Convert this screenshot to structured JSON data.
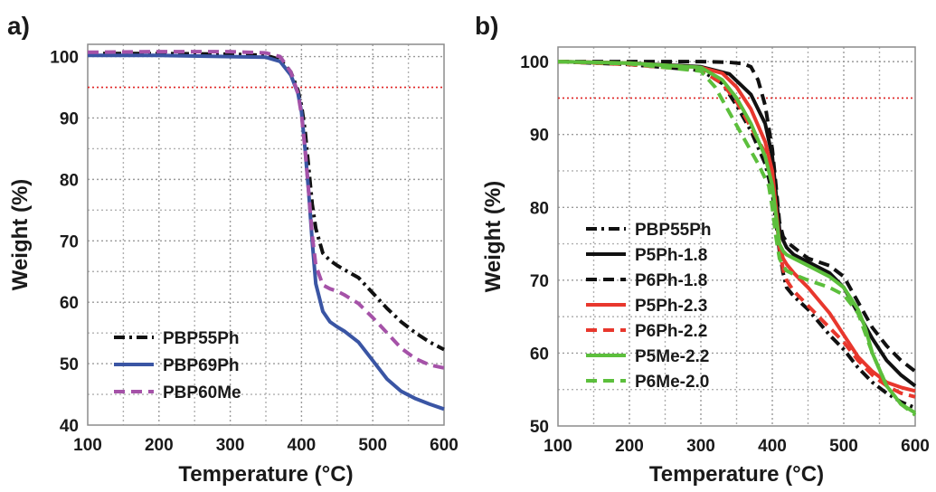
{
  "chart_data": [
    {
      "panel_label": "a)",
      "type": "line",
      "xlabel": "Temperature (°C)",
      "ylabel": "Weight (%)",
      "xlim": [
        100,
        600
      ],
      "ylim": [
        40,
        102
      ],
      "xticks": [
        "100",
        "200",
        "300",
        "400",
        "500",
        "600"
      ],
      "yticks": [
        "40",
        "50",
        "60",
        "70",
        "80",
        "90",
        "100"
      ],
      "grid": "dotted",
      "legend_position": "bottom-left",
      "reference_line": {
        "y": 95,
        "color": "#e32626",
        "style": "dotted"
      },
      "series": [
        {
          "name": "PBP55Ph",
          "color": "#111111",
          "dash": "dash-dot",
          "x": [
            100,
            200,
            300,
            350,
            370,
            385,
            395,
            400,
            405,
            410,
            415,
            420,
            430,
            440,
            450,
            460,
            480,
            500,
            520,
            540,
            560,
            580,
            600
          ],
          "y": [
            100.5,
            100.5,
            100.4,
            100.2,
            99.5,
            97.5,
            94.5,
            92,
            88,
            82,
            76,
            72,
            68,
            66.8,
            66,
            65.3,
            64,
            61.5,
            59,
            56.8,
            55,
            53.5,
            52.3
          ]
        },
        {
          "name": "PBP69Ph",
          "color": "#3a55a4",
          "dash": "solid",
          "x": [
            100,
            200,
            300,
            350,
            370,
            385,
            395,
            400,
            405,
            410,
            415,
            420,
            430,
            440,
            450,
            460,
            480,
            500,
            520,
            540,
            560,
            580,
            600
          ],
          "y": [
            100.2,
            100.2,
            100.0,
            99.9,
            99.2,
            97,
            94,
            91,
            85,
            78,
            70,
            63,
            58.5,
            56.8,
            56.0,
            55.3,
            53.5,
            50.5,
            47.5,
            45.5,
            44.3,
            43.4,
            42.6
          ]
        },
        {
          "name": "PBP60Me",
          "color": "#a552a8",
          "dash": "dashed",
          "x": [
            100,
            200,
            300,
            350,
            370,
            385,
            395,
            400,
            405,
            410,
            415,
            420,
            430,
            440,
            450,
            460,
            480,
            500,
            520,
            540,
            560,
            580,
            600
          ],
          "y": [
            100.7,
            100.8,
            100.8,
            100.6,
            100,
            97.5,
            94,
            90.5,
            85,
            78,
            71,
            66,
            62.8,
            62.2,
            61.8,
            61.2,
            59.8,
            57.5,
            55,
            52.5,
            50.8,
            49.8,
            49.3
          ]
        }
      ]
    },
    {
      "panel_label": "b)",
      "type": "line",
      "xlabel": "Temperature (°C)",
      "ylabel": "Weight (%)",
      "xlim": [
        100,
        600
      ],
      "ylim": [
        50,
        102
      ],
      "xticks": [
        "100",
        "200",
        "300",
        "400",
        "500",
        "600"
      ],
      "yticks": [
        "50",
        "60",
        "70",
        "80",
        "90",
        "100"
      ],
      "grid": "dotted",
      "legend_position": "center-left",
      "reference_line": {
        "y": 95,
        "color": "#e32626",
        "style": "dotted"
      },
      "series": [
        {
          "name": "PBP55Ph",
          "color": "#111111",
          "dash": "dash-dot",
          "x": [
            100,
            200,
            300,
            330,
            350,
            370,
            390,
            400,
            405,
            410,
            415,
            420,
            430,
            450,
            480,
            500,
            520,
            540,
            560,
            580,
            600
          ],
          "y": [
            100,
            99.6,
            98.8,
            97,
            94,
            90.5,
            86,
            82,
            78,
            74,
            71,
            69,
            67.8,
            66,
            62.5,
            60.5,
            58,
            56,
            54.5,
            53.3,
            52.5
          ]
        },
        {
          "name": "P5Ph-1.8",
          "color": "#111111",
          "dash": "solid",
          "x": [
            100,
            200,
            300,
            340,
            370,
            390,
            400,
            405,
            410,
            415,
            420,
            430,
            450,
            480,
            500,
            520,
            540,
            560,
            580,
            600
          ],
          "y": [
            100,
            99.8,
            99.3,
            98.3,
            95.5,
            91.5,
            87,
            82,
            77,
            75.5,
            74.5,
            73.5,
            72.5,
            71,
            69,
            65.5,
            62,
            59,
            57,
            55.5
          ]
        },
        {
          "name": "P6Ph-1.8",
          "color": "#111111",
          "dash": "dashed",
          "x": [
            100,
            200,
            300,
            340,
            360,
            370,
            380,
            390,
            395,
            400,
            405,
            410,
            415,
            420,
            430,
            450,
            480,
            500,
            520,
            540,
            560,
            580,
            600
          ],
          "y": [
            100,
            100,
            100,
            99.9,
            99.7,
            99.3,
            97.5,
            94,
            91,
            88,
            83,
            78,
            76,
            75.3,
            74.5,
            73,
            72,
            70.5,
            67,
            63.5,
            61,
            59,
            57.5
          ]
        },
        {
          "name": "P5Ph-2.3",
          "color": "#e8372d",
          "dash": "solid",
          "x": [
            100,
            200,
            300,
            330,
            350,
            370,
            390,
            400,
            405,
            410,
            415,
            420,
            430,
            450,
            480,
            500,
            520,
            540,
            560,
            580,
            600
          ],
          "y": [
            100,
            99.8,
            99.2,
            98.4,
            96.5,
            93.5,
            89,
            85,
            80,
            75,
            73,
            72.2,
            71,
            69,
            65.5,
            62.5,
            59.5,
            57.5,
            56,
            55.3,
            54.8
          ]
        },
        {
          "name": "P6Ph-2.2",
          "color": "#e8372d",
          "dash": "dashed",
          "x": [
            100,
            200,
            300,
            330,
            350,
            370,
            390,
            400,
            405,
            410,
            415,
            420,
            430,
            450,
            480,
            500,
            520,
            540,
            560,
            580,
            600
          ],
          "y": [
            100,
            99.6,
            98.8,
            97,
            94.5,
            91,
            87.5,
            83.5,
            79,
            74.5,
            71.5,
            70,
            68.5,
            66.5,
            63.5,
            61.5,
            59,
            57,
            55.5,
            54.5,
            54
          ]
        },
        {
          "name": "P5Me-2.2",
          "color": "#5cbf3c",
          "dash": "solid",
          "x": [
            100,
            200,
            300,
            330,
            350,
            370,
            390,
            400,
            405,
            410,
            415,
            420,
            430,
            450,
            480,
            500,
            520,
            530,
            540,
            560,
            580,
            600
          ],
          "y": [
            100,
            99.8,
            99.2,
            97.5,
            95,
            91.5,
            87,
            83,
            79,
            75,
            74,
            73.5,
            73,
            72,
            70.5,
            69,
            66,
            63.5,
            60,
            55.5,
            53,
            51.8
          ]
        },
        {
          "name": "P6Me-2.0",
          "color": "#5cbf3c",
          "dash": "dashed",
          "x": [
            100,
            200,
            300,
            320,
            340,
            360,
            380,
            395,
            400,
            405,
            410,
            415,
            420,
            430,
            450,
            480,
            500,
            520,
            540,
            560,
            580,
            600
          ],
          "y": [
            100,
            99.7,
            98.7,
            96.5,
            93,
            89.5,
            86,
            83,
            80,
            76,
            73,
            72,
            71.3,
            70.8,
            70,
            69,
            68,
            65.5,
            60,
            55.5,
            53,
            51.5
          ]
        }
      ]
    }
  ]
}
